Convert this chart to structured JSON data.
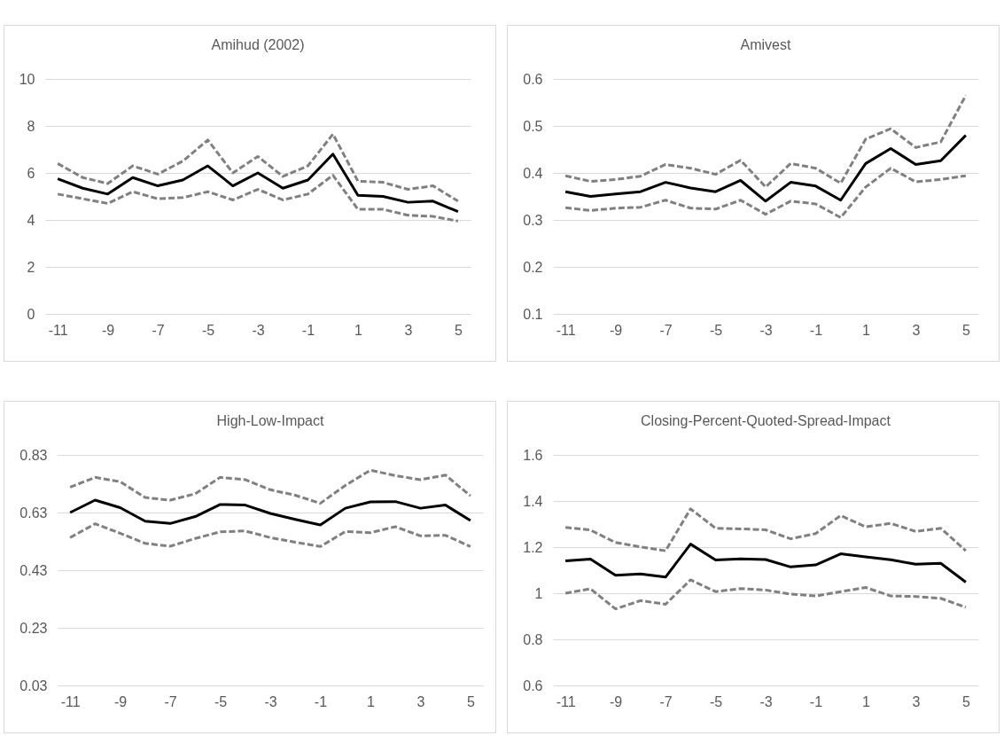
{
  "chart_data": [
    {
      "type": "line",
      "title": "Amihud (2002)",
      "x": [
        -11,
        -10,
        -9,
        -8,
        -7,
        -6,
        -5,
        -4,
        -3,
        -2,
        -1,
        0,
        1,
        2,
        3,
        4,
        5
      ],
      "xlim": [
        -11.5,
        5.5
      ],
      "xticks": [
        -11,
        -9,
        -7,
        -5,
        -3,
        -1,
        1,
        3,
        5
      ],
      "ylim": [
        0,
        10
      ],
      "yticks": [
        0,
        2,
        4,
        6,
        8,
        10
      ],
      "grid": "y",
      "series": [
        {
          "color": "#808080",
          "line_style": "dashed",
          "values": [
            6.4,
            5.8,
            5.55,
            6.3,
            5.95,
            6.5,
            7.4,
            6.0,
            6.7,
            5.85,
            6.3,
            7.65,
            5.65,
            5.6,
            5.3,
            5.45,
            4.8
          ]
        },
        {
          "color": "#808080",
          "line_style": "dashed",
          "values": [
            5.1,
            4.9,
            4.7,
            5.2,
            4.9,
            4.95,
            5.2,
            4.85,
            5.3,
            4.85,
            5.1,
            5.9,
            4.45,
            4.45,
            4.2,
            4.15,
            3.95
          ]
        },
        {
          "color": "#000000",
          "line_style": "solid",
          "values": [
            5.75,
            5.35,
            5.1,
            5.8,
            5.45,
            5.7,
            6.3,
            5.45,
            6.0,
            5.35,
            5.7,
            6.8,
            5.05,
            5.0,
            4.75,
            4.8,
            4.35
          ]
        }
      ]
    },
    {
      "type": "line",
      "title": "Amivest",
      "x": [
        -11,
        -10,
        -9,
        -8,
        -7,
        -6,
        -5,
        -4,
        -3,
        -2,
        -1,
        0,
        1,
        2,
        3,
        4,
        5
      ],
      "xlim": [
        -11.5,
        5.5
      ],
      "xticks": [
        -11,
        -9,
        -7,
        -5,
        -3,
        -1,
        1,
        3,
        5
      ],
      "ylim": [
        0.1,
        0.6
      ],
      "yticks": [
        0.1,
        0.2,
        0.3,
        0.4,
        0.5,
        0.6
      ],
      "grid": "y",
      "series": [
        {
          "color": "#808080",
          "line_style": "dashed",
          "values": [
            0.394,
            0.382,
            0.386,
            0.393,
            0.418,
            0.41,
            0.397,
            0.427,
            0.37,
            0.42,
            0.41,
            0.378,
            0.472,
            0.494,
            0.454,
            0.466,
            0.565
          ]
        },
        {
          "color": "#808080",
          "line_style": "dashed",
          "values": [
            0.326,
            0.32,
            0.325,
            0.327,
            0.342,
            0.325,
            0.323,
            0.342,
            0.312,
            0.34,
            0.334,
            0.305,
            0.37,
            0.41,
            0.381,
            0.386,
            0.394
          ]
        },
        {
          "color": "#000000",
          "line_style": "solid",
          "values": [
            0.36,
            0.35,
            0.355,
            0.36,
            0.38,
            0.368,
            0.36,
            0.384,
            0.34,
            0.38,
            0.372,
            0.342,
            0.42,
            0.452,
            0.418,
            0.426,
            0.48
          ]
        }
      ]
    },
    {
      "type": "line",
      "title": "High-Low-Impact",
      "x": [
        -11,
        -10,
        -9,
        -8,
        -7,
        -6,
        -5,
        -4,
        -3,
        -2,
        -1,
        0,
        1,
        2,
        3,
        4,
        5
      ],
      "xlim": [
        -11.5,
        5.5
      ],
      "xticks": [
        -11,
        -9,
        -7,
        -5,
        -3,
        -1,
        1,
        3,
        5
      ],
      "ylim": [
        0.03,
        0.83
      ],
      "yticks": [
        0.03,
        0.23,
        0.43,
        0.63,
        0.83
      ],
      "grid": "y",
      "series": [
        {
          "color": "#808080",
          "line_style": "dashed",
          "values": [
            0.718,
            0.752,
            0.737,
            0.682,
            0.673,
            0.695,
            0.752,
            0.744,
            0.709,
            0.69,
            0.662,
            0.724,
            0.777,
            0.758,
            0.744,
            0.76,
            0.688
          ]
        },
        {
          "color": "#808080",
          "line_style": "dashed",
          "values": [
            0.543,
            0.591,
            0.558,
            0.523,
            0.513,
            0.54,
            0.563,
            0.566,
            0.543,
            0.527,
            0.512,
            0.564,
            0.56,
            0.581,
            0.549,
            0.551,
            0.512
          ]
        },
        {
          "color": "#000000",
          "line_style": "solid",
          "values": [
            0.63,
            0.673,
            0.647,
            0.6,
            0.592,
            0.616,
            0.658,
            0.656,
            0.627,
            0.606,
            0.587,
            0.645,
            0.667,
            0.668,
            0.645,
            0.656,
            0.602
          ]
        }
      ]
    },
    {
      "type": "line",
      "title": "Closing-Percent-Quoted-Spread-Impact",
      "x": [
        -11,
        -10,
        -9,
        -8,
        -7,
        -6,
        -5,
        -4,
        -3,
        -2,
        -1,
        0,
        1,
        2,
        3,
        4,
        5
      ],
      "xlim": [
        -11.5,
        5.5
      ],
      "xticks": [
        -11,
        -9,
        -7,
        -5,
        -3,
        -1,
        1,
        3,
        5
      ],
      "ylim": [
        0.6,
        1.6
      ],
      "yticks": [
        0.6,
        0.8,
        1,
        1.2,
        1.4,
        1.6
      ],
      "grid": "y",
      "series": [
        {
          "color": "#808080",
          "line_style": "dashed",
          "values": [
            1.286,
            1.274,
            1.22,
            1.201,
            1.184,
            1.366,
            1.282,
            1.279,
            1.275,
            1.236,
            1.259,
            1.337,
            1.288,
            1.303,
            1.268,
            1.282,
            1.184
          ]
        },
        {
          "color": "#808080",
          "line_style": "dashed",
          "values": [
            1.0,
            1.019,
            0.932,
            0.968,
            0.952,
            1.058,
            1.007,
            1.02,
            1.014,
            0.996,
            0.988,
            1.007,
            1.025,
            0.988,
            0.986,
            0.978,
            0.939
          ]
        },
        {
          "color": "#000000",
          "line_style": "solid",
          "values": [
            1.14,
            1.148,
            1.078,
            1.084,
            1.07,
            1.213,
            1.144,
            1.149,
            1.146,
            1.114,
            1.123,
            1.171,
            1.158,
            1.145,
            1.126,
            1.13,
            1.048
          ]
        }
      ]
    }
  ]
}
